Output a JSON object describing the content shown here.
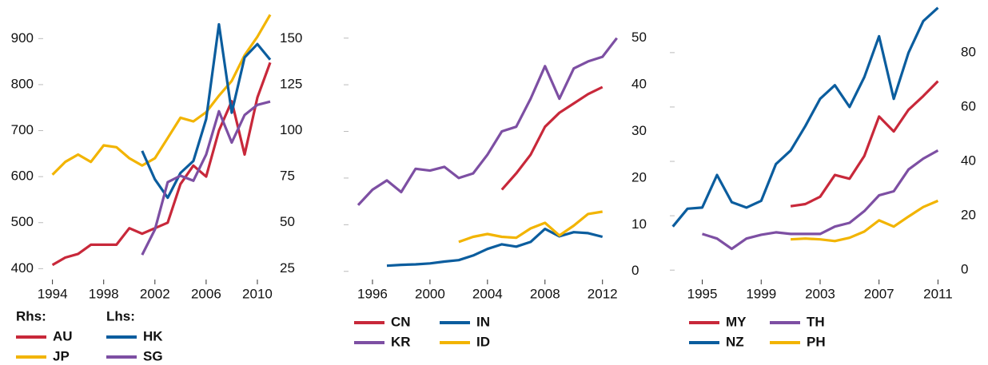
{
  "chart_data": [
    {
      "type": "line",
      "ylim": [
        385,
        970
      ],
      "yticks": [
        400,
        500,
        600,
        700,
        800,
        900
      ],
      "y_axis_side": "left",
      "y2lim": [
        21.25,
        167.5
      ],
      "y2ticks": [
        25,
        50,
        75,
        100,
        125,
        150
      ],
      "xlim": [
        1992.9,
        2011.25
      ],
      "xticks": [
        1994,
        1998,
        2002,
        2006,
        2010
      ],
      "legend_titles": [
        "Rhs:",
        "Lhs:"
      ],
      "series": [
        {
          "name": "AU",
          "color": "#c8283a",
          "axis": "y2",
          "x": [
            1994,
            1995,
            1996,
            1997,
            1998,
            1999,
            2000,
            2001,
            2002,
            2003,
            2004,
            2005,
            2006,
            2007,
            2008,
            2009,
            2010,
            2011
          ],
          "values": [
            27,
            31,
            33,
            38,
            38,
            38,
            47,
            44,
            47,
            50,
            71,
            81,
            75,
            100,
            116,
            87,
            118,
            137
          ]
        },
        {
          "name": "JP",
          "color": "#f2b400",
          "axis": "y2",
          "x": [
            1994,
            1995,
            1996,
            1997,
            1998,
            1999,
            2000,
            2001,
            2002,
            2003,
            2004,
            2005,
            2006,
            2007,
            2008,
            2009,
            2010,
            2011
          ],
          "values": [
            76,
            83,
            87,
            83,
            92,
            91,
            85,
            81,
            85,
            96,
            107,
            105,
            110,
            119,
            127,
            141,
            151,
            163
          ]
        },
        {
          "name": "HK",
          "color": "#0b5d9e",
          "x": [
            2001,
            2002,
            2003,
            2004,
            2005,
            2006,
            2007,
            2008,
            2009,
            2010,
            2011
          ],
          "values": [
            656,
            594,
            554,
            608,
            634,
            725,
            931,
            739,
            859,
            888,
            854
          ]
        },
        {
          "name": "SG",
          "color": "#7d4fa3",
          "x": [
            2001,
            2002,
            2003,
            2004,
            2005,
            2006,
            2007,
            2008,
            2009,
            2010,
            2011
          ],
          "values": [
            430,
            485,
            588,
            602,
            591,
            648,
            742,
            674,
            734,
            756,
            763
          ]
        }
      ]
    },
    {
      "type": "line",
      "ylim": [
        -0.9,
        56.8
      ],
      "yticks": [
        0,
        10,
        20,
        30,
        40,
        50
      ],
      "y_axis_side": "right",
      "xlim": [
        1994,
        2013.35
      ],
      "xticks": [
        1996,
        2000,
        2004,
        2008,
        2012
      ],
      "series": [
        {
          "name": "CN",
          "color": "#c8283a",
          "x": [
            2005,
            2006,
            2007,
            2008,
            2009,
            2010,
            2011,
            2012
          ],
          "values": [
            17.5,
            21,
            25,
            31,
            34,
            36,
            38,
            39.5
          ]
        },
        {
          "name": "KR",
          "color": "#7d4fa3",
          "x": [
            1995,
            1996,
            1997,
            1998,
            1999,
            2000,
            2001,
            2002,
            2003,
            2004,
            2005,
            2006,
            2007,
            2008,
            2009,
            2010,
            2011,
            2012,
            2013
          ],
          "values": [
            14.2,
            17.5,
            19.5,
            17,
            22,
            21.6,
            22.4,
            20,
            21,
            25,
            30,
            31,
            37,
            44,
            37,
            43.5,
            45,
            46,
            50
          ]
        },
        {
          "name": "IN",
          "color": "#0b5d9e",
          "x": [
            1997,
            1998,
            1999,
            2000,
            2001,
            2002,
            2003,
            2004,
            2005,
            2006,
            2007,
            2008,
            2009,
            2010,
            2011,
            2012
          ],
          "values": [
            1.2,
            1.4,
            1.5,
            1.7,
            2.1,
            2.4,
            3.4,
            4.8,
            5.8,
            5.3,
            6.3,
            9.1,
            7.5,
            8.4,
            8.2,
            7.4
          ]
        },
        {
          "name": "ID",
          "color": "#f2b400",
          "x": [
            2002,
            2003,
            2004,
            2005,
            2006,
            2007,
            2008,
            2009,
            2010,
            2011,
            2012
          ],
          "values": [
            6.3,
            7.4,
            8,
            7.4,
            7.2,
            9.2,
            10.4,
            7.7,
            9.8,
            12.3,
            12.8
          ]
        }
      ]
    },
    {
      "type": "line",
      "ylim": [
        -2,
        97
      ],
      "yticks": [
        0,
        20,
        40,
        60,
        80
      ],
      "y_axis_side": "right",
      "xlim": [
        1992.8,
        2011.9
      ],
      "xticks": [
        1995,
        1999,
        2003,
        2007,
        2011
      ],
      "series": [
        {
          "name": "MY",
          "color": "#c8283a",
          "x": [
            2001,
            2002,
            2003,
            2004,
            2005,
            2006,
            2007,
            2008,
            2009,
            2010,
            2011
          ],
          "values": [
            23.5,
            24.3,
            27,
            35,
            33.6,
            42,
            56.5,
            51,
            59,
            64,
            69.5
          ]
        },
        {
          "name": "NZ",
          "color": "#0b5d9e",
          "x": [
            1993,
            1994,
            1995,
            1996,
            1997,
            1998,
            1999,
            2000,
            2001,
            2002,
            2003,
            2004,
            2005,
            2006,
            2007,
            2008,
            2009,
            2010,
            2011
          ],
          "values": [
            16,
            22.6,
            23,
            35,
            25,
            23,
            25.5,
            39,
            44,
            53,
            63,
            68,
            60,
            71,
            86,
            63,
            80,
            91.6,
            96.5
          ]
        },
        {
          "name": "TH",
          "color": "#7d4fa3",
          "x": [
            1995,
            1996,
            1997,
            1998,
            1999,
            2000,
            2001,
            2002,
            2003,
            2004,
            2005,
            2006,
            2007,
            2008,
            2009,
            2010,
            2011
          ],
          "values": [
            13.3,
            11.6,
            7.8,
            11.6,
            13,
            13.9,
            13.3,
            13.3,
            13.3,
            16,
            17.4,
            21.7,
            27.5,
            29,
            37,
            41,
            44
          ]
        },
        {
          "name": "PH",
          "color": "#f2b400",
          "x": [
            2001,
            2002,
            2003,
            2004,
            2005,
            2006,
            2007,
            2008,
            2009,
            2010,
            2011
          ],
          "values": [
            11.3,
            11.6,
            11.3,
            10.7,
            11.9,
            14.2,
            18.3,
            16,
            19.7,
            23.2,
            25.5
          ]
        }
      ]
    }
  ]
}
